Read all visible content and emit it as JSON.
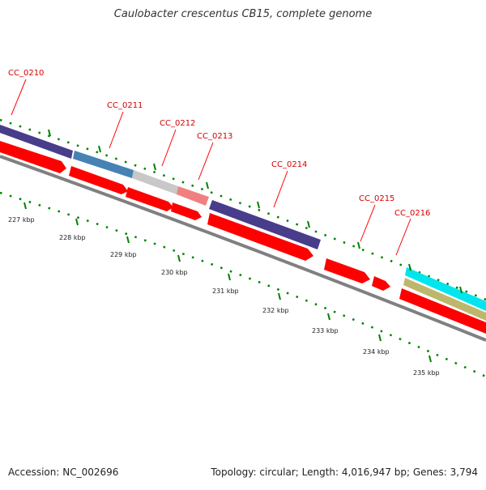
{
  "title": "Caulobacter crescentus CB15, complete genome",
  "footer": {
    "accession": "Accession: NC_002696",
    "summary": "Topology: circular; Length: 4,016,947 bp; Genes: 3,794"
  },
  "colors": {
    "cds": "#ff0000",
    "gene_purple": "#483d8b",
    "gene_blue": "#4682b4",
    "gene_grey": "#c8c8c8",
    "gene_pink": "#f08080",
    "backbone": "#808080",
    "tick": "#008000",
    "label": "#d40000",
    "cyan": "#00e5ee",
    "khaki": "#bdb76b"
  },
  "gene_labels": [
    {
      "name": "CC_0210"
    },
    {
      "name": "CC_0211"
    },
    {
      "name": "CC_0212"
    },
    {
      "name": "CC_0213"
    },
    {
      "name": "CC_0214"
    },
    {
      "name": "CC_0215"
    },
    {
      "name": "CC_0216"
    }
  ],
  "kbp_ticks": [
    {
      "label": "227 kbp"
    },
    {
      "label": "228 kbp"
    },
    {
      "label": "229 kbp"
    },
    {
      "label": "230 kbp"
    },
    {
      "label": "231 kbp"
    },
    {
      "label": "232 kbp"
    },
    {
      "label": "233 kbp"
    },
    {
      "label": "234 kbp"
    },
    {
      "label": "235 kbp"
    }
  ]
}
